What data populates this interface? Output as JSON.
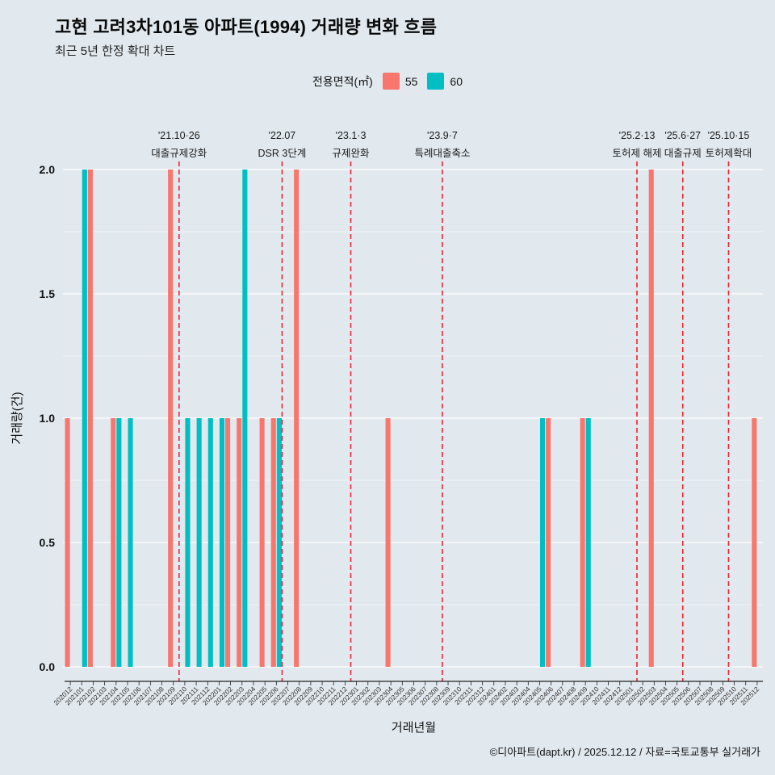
{
  "header": {
    "title": "고현 고려3차101동 아파트(1994) 거래량 변화 흐름",
    "subtitle": "최근 5년 한정 확대 차트"
  },
  "legend": {
    "label": "전용면적(㎡)",
    "items": [
      {
        "name": "55",
        "color": "#F8766D"
      },
      {
        "name": "60",
        "color": "#00BFC4"
      }
    ]
  },
  "footer": {
    "credit": "©디아파트(dapt.kr) / 2025.12.12 / 자료=국토교통부 실거래가"
  },
  "chart_data": {
    "type": "bar",
    "title": "고현 고려3차101동 아파트(1994) 거래량 변화 흐름",
    "subtitle": "최근 5년 한정 확대 차트",
    "xlabel": "거래년월",
    "ylabel": "거래량(건)",
    "ylim": [
      0,
      2
    ],
    "yticks": [
      0.0,
      0.5,
      1.0,
      1.5,
      2.0
    ],
    "grid": true,
    "legend_position": "top",
    "categories": [
      "202012",
      "202101",
      "202102",
      "202103",
      "202104",
      "202105",
      "202106",
      "202107",
      "202108",
      "202109",
      "202110",
      "202111",
      "202112",
      "202201",
      "202202",
      "202203",
      "202204",
      "202205",
      "202206",
      "202207",
      "202208",
      "202209",
      "202210",
      "202211",
      "202212",
      "202301",
      "202302",
      "202303",
      "202304",
      "202305",
      "202306",
      "202307",
      "202308",
      "202309",
      "202310",
      "202311",
      "202312",
      "202401",
      "202402",
      "202403",
      "202404",
      "202405",
      "202406",
      "202407",
      "202408",
      "202409",
      "202410",
      "202411",
      "202412",
      "202501",
      "202502",
      "202503",
      "202504",
      "202505",
      "202506",
      "202507",
      "202508",
      "202509",
      "202510",
      "202511",
      "202512"
    ],
    "series": [
      {
        "name": "55",
        "color": "#F8766D",
        "values": [
          1,
          0,
          2,
          0,
          1,
          0,
          0,
          0,
          0,
          2,
          0,
          0,
          0,
          0,
          1,
          1,
          0,
          1,
          1,
          0,
          2,
          0,
          0,
          0,
          0,
          0,
          0,
          0,
          1,
          0,
          0,
          0,
          0,
          0,
          0,
          0,
          0,
          0,
          0,
          0,
          0,
          0,
          1,
          0,
          0,
          1,
          0,
          0,
          0,
          0,
          0,
          2,
          0,
          0,
          0,
          0,
          0,
          0,
          0,
          0,
          1
        ]
      },
      {
        "name": "60",
        "color": "#00BFC4",
        "values": [
          0,
          2,
          0,
          0,
          1,
          1,
          0,
          0,
          0,
          0,
          1,
          1,
          1,
          1,
          0,
          2,
          0,
          0,
          1,
          0,
          0,
          0,
          0,
          0,
          0,
          0,
          0,
          0,
          0,
          0,
          0,
          0,
          0,
          0,
          0,
          0,
          0,
          0,
          0,
          0,
          0,
          1,
          0,
          0,
          0,
          1,
          0,
          0,
          0,
          0,
          0,
          0,
          0,
          0,
          0,
          0,
          0,
          0,
          0,
          0,
          0
        ]
      }
    ],
    "annotations": [
      {
        "date": "'21.10·26",
        "label": "대출규제강화",
        "month": "202110"
      },
      {
        "date": "'22.07",
        "label": "DSR 3단계",
        "month": "202207"
      },
      {
        "date": "'23.1·3",
        "label": "규제완화",
        "month": "202301"
      },
      {
        "date": "'23.9·7",
        "label": "특례대출축소",
        "month": "202309"
      },
      {
        "date": "'25.2·13",
        "label": "토허제 해제",
        "month": "202502"
      },
      {
        "date": "'25.6·27",
        "label": "대출규제",
        "month": "202506"
      },
      {
        "date": "'25.10·15",
        "label": "토허제확대",
        "month": "202510"
      }
    ],
    "event_line_color": "#ee2233"
  }
}
